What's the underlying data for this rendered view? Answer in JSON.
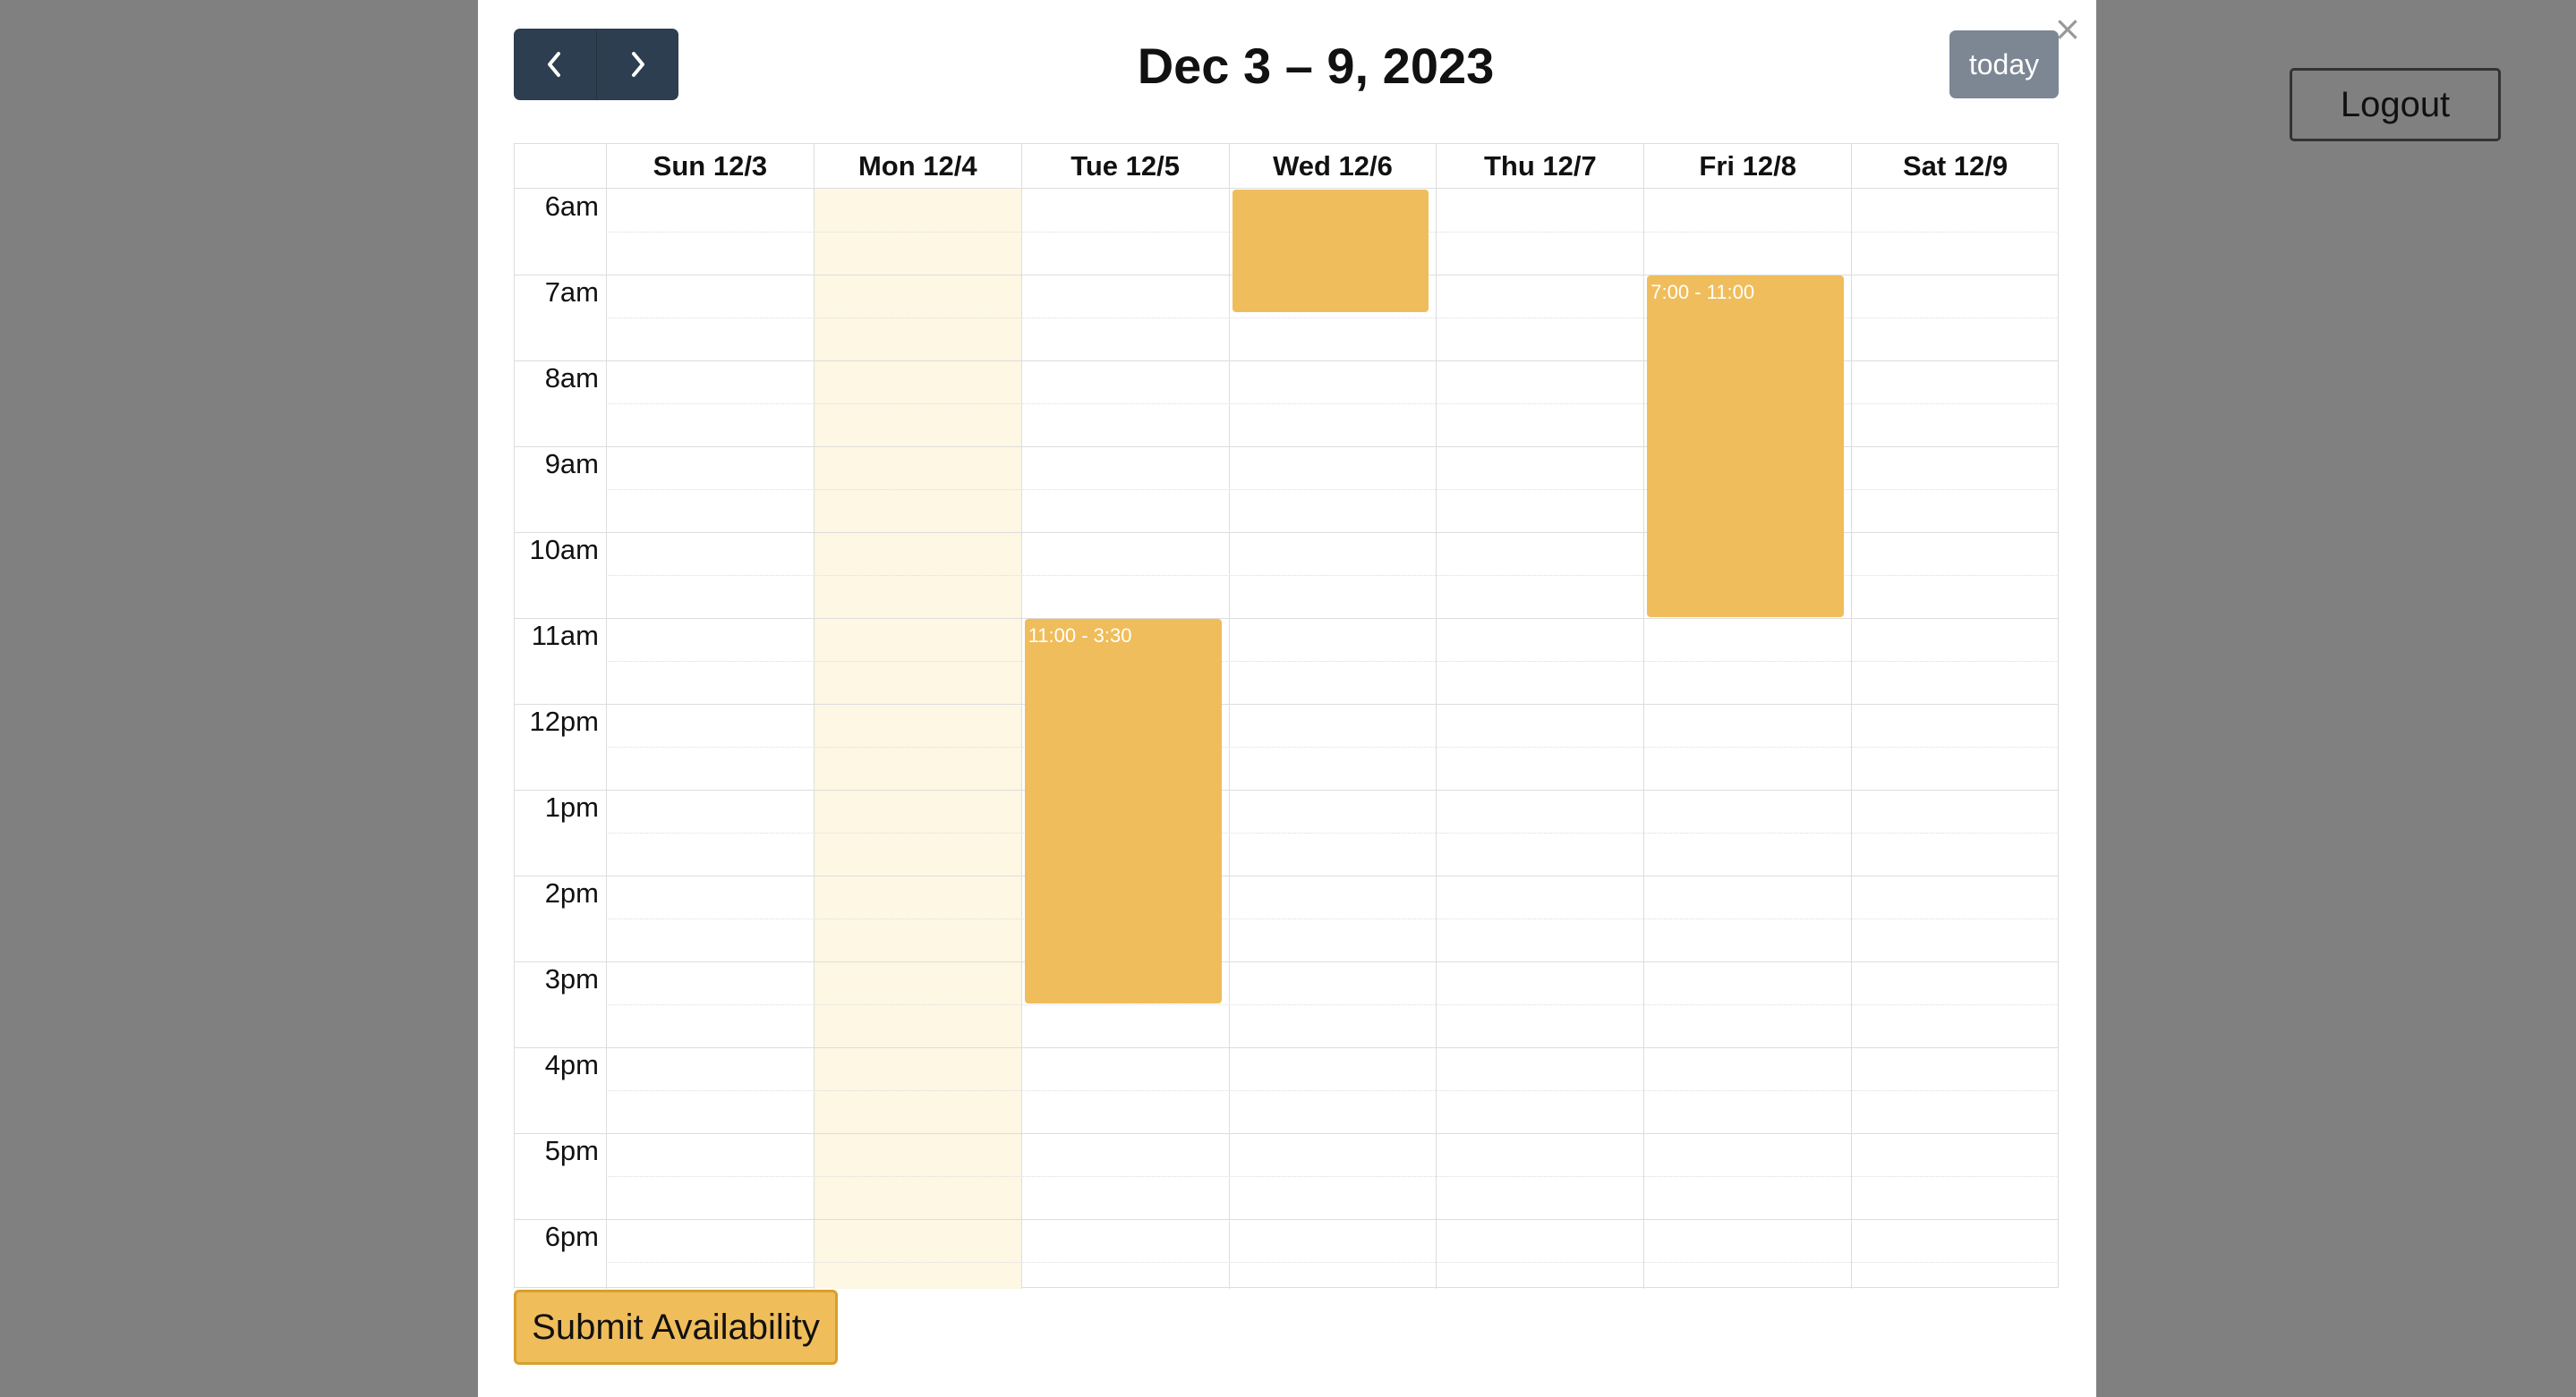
{
  "page": {
    "logout_label": "Logout",
    "close_glyph": "×"
  },
  "toolbar": {
    "prev_icon": "chevron-left-icon",
    "next_icon": "chevron-right-icon",
    "title": "Dec 3 – 9, 2023",
    "today_label": "today"
  },
  "calendar": {
    "days": [
      "Sun 12/3",
      "Mon 12/4",
      "Tue 12/5",
      "Wed 12/6",
      "Thu 12/7",
      "Fri 12/8",
      "Sat 12/9"
    ],
    "today_index": 1,
    "time_labels": [
      "6am",
      "7am",
      "8am",
      "9am",
      "10am",
      "11am",
      "12pm",
      "1pm",
      "2pm",
      "3pm",
      "4pm",
      "5pm",
      "6pm"
    ],
    "events": [
      {
        "day": 2,
        "label": "11:00 - 3:30"
      },
      {
        "day": 3,
        "label": ""
      },
      {
        "day": 5,
        "label": "7:00 - 11:00"
      }
    ]
  },
  "footer": {
    "submit_label": "Submit Availability"
  },
  "colors": {
    "nav_bg": "#2c3e50",
    "today_button_bg": "#7d8794",
    "event_bg": "#efbd5b",
    "today_highlight": "#fdf7e3",
    "submit_bg": "#f0bd5b"
  }
}
